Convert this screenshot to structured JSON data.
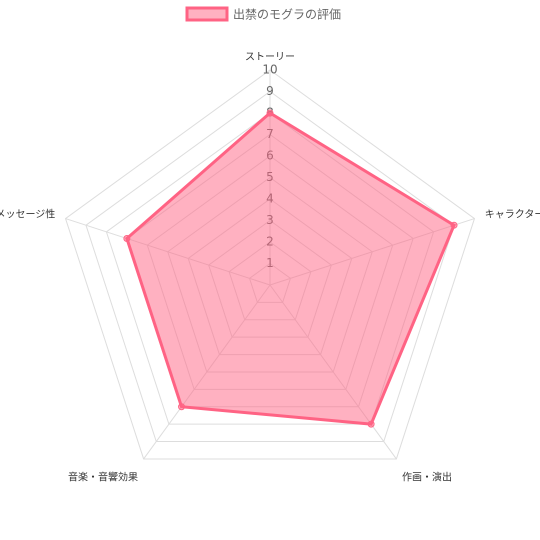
{
  "chart_data": {
    "type": "radar",
    "labels": [
      "ストーリー",
      "キャラクター",
      "作画・演出",
      "音楽・音響効果",
      "メッセージ性"
    ],
    "series": [
      {
        "name": "出禁のモグラの評価",
        "color": "#ff6384",
        "values": [
          8,
          9,
          8,
          7,
          7
        ]
      }
    ],
    "rlim": [
      0,
      10
    ],
    "rticks": [
      1,
      2,
      3,
      4,
      5,
      6,
      7,
      8,
      9,
      10
    ],
    "grid": true,
    "legend": "top"
  }
}
